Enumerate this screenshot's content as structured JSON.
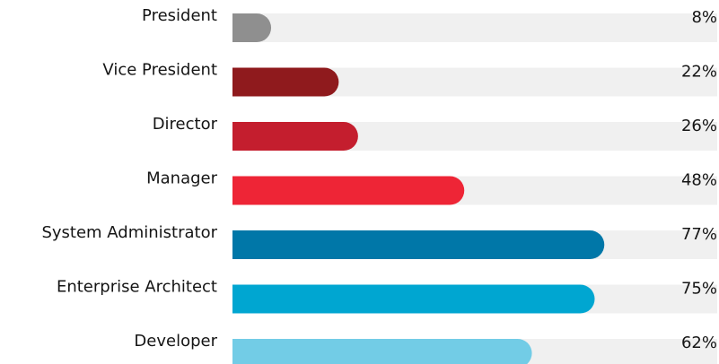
{
  "chart_data": {
    "type": "hbar",
    "categories": [
      "President",
      "Vice President",
      "Director",
      "Manager",
      "System Administrator",
      "Enterprise Architect",
      "Developer"
    ],
    "values": [
      8,
      22,
      26,
      48,
      77,
      75,
      62
    ],
    "value_labels": [
      "8%",
      "22%",
      "26%",
      "48%",
      "77%",
      "75%",
      "62%"
    ],
    "colors": [
      "#8f8f8f",
      "#8f1a1d",
      "#c41e2e",
      "#ee2536",
      "#0077a8",
      "#00a6d1",
      "#72cce6"
    ],
    "track_color": "#f0f0f0",
    "xlim": [
      0,
      100
    ]
  }
}
